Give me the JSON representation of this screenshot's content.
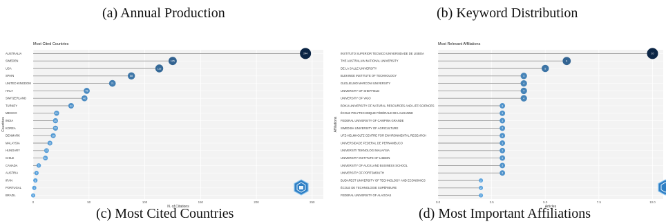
{
  "captions": {
    "a": "(a) Annual Production",
    "b": "(b) Keyword Distribution",
    "c": "(c) Most Cited Countries",
    "d": "(d) Most Important Affiliations"
  },
  "chart_data": [
    {
      "type": "lollipop",
      "title": "Most Cited Countries",
      "xlabel": "N. of Citations",
      "ylabel": "Countries",
      "xlim": [
        0,
        260
      ],
      "xticks": [
        0,
        50,
        100,
        150,
        200,
        250
      ],
      "categories": [
        "AUSTRALIA",
        "SWEDEN",
        "USA",
        "SPAIN",
        "UNITED KINGDOM",
        "ITALY",
        "SWITZERLAND",
        "TURKEY",
        "MEXICO",
        "INDIA",
        "KOREA",
        "DENMARK",
        "MALAYSIA",
        "HUNGARY",
        "CHILE",
        "CANADA",
        "AUSTRIA",
        "IRAN",
        "PORTUGAL",
        "BRAZIL"
      ],
      "values": [
        244,
        125,
        113,
        88,
        71,
        48,
        46,
        34,
        21,
        20,
        20,
        18,
        15,
        12,
        11,
        5,
        3,
        2,
        1,
        0
      ],
      "color_low": "#5aa3de",
      "color_high": "#0b2545",
      "grid": true,
      "legend": "none"
    },
    {
      "type": "lollipop",
      "title": "Most Relevant Affiliations",
      "xlabel": "Articles",
      "ylabel": "Affiliations",
      "xlim": [
        0,
        10.5
      ],
      "xticks": [
        0.0,
        2.5,
        5.0,
        7.5,
        10.0
      ],
      "xtick_labels": [
        "0.0",
        "2.5",
        "5.0",
        "7.5",
        "10.0"
      ],
      "categories": [
        "INSTITUTO SUPERIOR TECNICO UNIVERSIDADE DE LISBOA",
        "THE AUSTRALIAN NATIONAL UNIVERSITY",
        "DE LA SALLE UNIVERSITY",
        "BLEKINGE INSTITUTE OF TECHNOLOGY",
        "GUGLIELMO MARCONI UNIVERSITY",
        "UNIVERSITY OF SHEFFIELD",
        "UNIVERSITY OF VIGO",
        "BOKU-UNIVERSITY OF NATURAL RESOURCES AND LIFE SCIENCES",
        "ÉCOLE POLYTECHNIQUE FÉDÉRALE DE LAUSANNE",
        "FEDERAL UNIVERSITY OF CAMPINA GRANDE",
        "SWEDISH UNIVERSITY OF AGRICULTURE",
        "UFZ-HELMHOLTZ CENTRE FOR ENVIRONMENTAL RESEARCH",
        "UNIVERSIDADE FEDERAL DE PERNAMBUCO",
        "UNIVERSITI TEKNOLOGI MALAYSIA",
        "UNIVERSITY INSTITUTE OF LISBON",
        "UNIVERSITY OF AUCKLAND BUSINESS SCHOOL",
        "UNIVERSITY OF PORTSMOUTH",
        "BUDAPEST UNIVERSITY OF TECHNOLOGY AND ECONOMICS",
        "ÉCOLE DE TECHNOLOGIE SUPÉRIEURE",
        "FEDERAL UNIVERSITY OF ALAGOAS"
      ],
      "values": [
        10,
        6,
        5,
        4,
        4,
        4,
        4,
        3,
        3,
        3,
        3,
        3,
        3,
        3,
        3,
        3,
        3,
        2,
        2,
        2
      ],
      "color_low": "#5aa3de",
      "color_high": "#0b2545",
      "grid": true,
      "legend": "none"
    }
  ]
}
